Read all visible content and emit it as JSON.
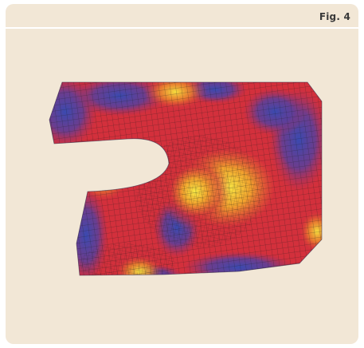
{
  "figure": {
    "label": "Fig. 4",
    "description_icon": "fem-mesh-stress-contour",
    "colors": {
      "card_background": "#f2e7d6",
      "contour_low": "#3b4aa8",
      "contour_mid": "#d42c3a",
      "contour_high": "#f5e23a",
      "mesh_lines": "#1a1a1a"
    }
  }
}
